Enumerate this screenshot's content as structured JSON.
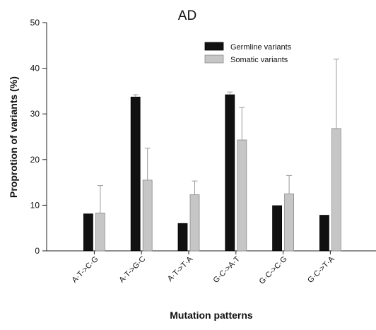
{
  "chart_data": {
    "type": "bar",
    "title": "AD",
    "xlabel": "Mutation patterns",
    "ylabel": "Proprotion of variants (%)",
    "ylim": [
      0,
      50
    ],
    "yticks": [
      0,
      10,
      20,
      30,
      40,
      50
    ],
    "categories": [
      "A·T->C·G",
      "A·T->G·C",
      "A·T->T·A",
      "G·C->A·T",
      "G·C->C·G",
      "G·C->T·A"
    ],
    "series": [
      {
        "name": "Germline variants",
        "color": "#111111",
        "values": [
          8.1,
          33.7,
          6.0,
          34.2,
          9.9,
          7.8
        ],
        "errors": [
          0,
          0.5,
          0,
          0.6,
          0,
          0
        ]
      },
      {
        "name": "Somatic variants",
        "color": "#c6c6c6",
        "values": [
          8.3,
          15.5,
          12.3,
          24.3,
          12.5,
          26.8
        ],
        "errors": [
          6.0,
          7.0,
          3.0,
          7.1,
          4.0,
          15.2
        ]
      }
    ],
    "legend_position": "top-right",
    "grid": false
  }
}
